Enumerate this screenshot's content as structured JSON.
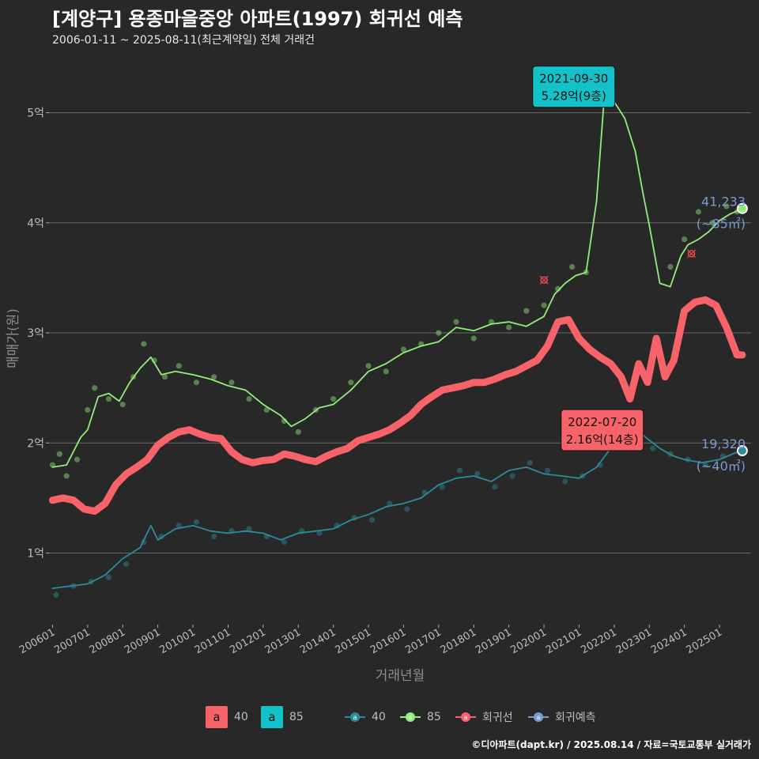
{
  "header": {
    "title": "[계양구] 용종마을중앙 아파트(1997) 회귀선 예측",
    "subtitle": "2006-01-11 ~ 2025-08-11(최근계약일) 전체 거래건"
  },
  "caption": "©디아파트(dapt.kr) / 2025.08.14 / 자료=국토교통부 실거래가",
  "legend": {
    "label_items": [
      {
        "key": "a",
        "label": "40",
        "color": "#f8636a"
      },
      {
        "key": "a",
        "label": "85",
        "color": "#13c2c9"
      }
    ],
    "line_items": [
      {
        "label": "40",
        "color": "#2c8c99"
      },
      {
        "label": "85",
        "color": "#90ee7a"
      },
      {
        "label": "회귀선",
        "color": "#f8636a"
      },
      {
        "label": "회귀예측",
        "color": "#7b9ad2"
      }
    ]
  },
  "chart_data": {
    "type": "line",
    "xlabel": "거래년월",
    "ylabel": "매매가(원)",
    "x_ticks": [
      "200601",
      "200701",
      "200801",
      "200901",
      "201001",
      "201101",
      "201201",
      "201301",
      "201401",
      "201501",
      "201601",
      "201701",
      "201801",
      "201901",
      "202001",
      "202101",
      "202201",
      "202301",
      "202401",
      "202501"
    ],
    "y_ticks": [
      {
        "value": 1,
        "label": "1억"
      },
      {
        "value": 2,
        "label": "2억"
      },
      {
        "value": 3,
        "label": "3억"
      },
      {
        "value": 4,
        "label": "4억"
      },
      {
        "value": 5,
        "label": "5억"
      }
    ],
    "x_range": [
      2005.9,
      2025.9
    ],
    "y_range": [
      0.35,
      5.55
    ],
    "grid": true,
    "series": [
      {
        "name": "85",
        "color": "#90ee7a",
        "points": [
          [
            2006.0,
            1.78
          ],
          [
            2006.4,
            1.8
          ],
          [
            2006.8,
            2.05
          ],
          [
            2007.0,
            2.12
          ],
          [
            2007.3,
            2.42
          ],
          [
            2007.6,
            2.45
          ],
          [
            2007.9,
            2.38
          ],
          [
            2008.2,
            2.55
          ],
          [
            2008.5,
            2.68
          ],
          [
            2008.8,
            2.78
          ],
          [
            2009.1,
            2.62
          ],
          [
            2009.5,
            2.65
          ],
          [
            2010.0,
            2.62
          ],
          [
            2010.5,
            2.58
          ],
          [
            2011.0,
            2.52
          ],
          [
            2011.5,
            2.48
          ],
          [
            2012.0,
            2.35
          ],
          [
            2012.5,
            2.25
          ],
          [
            2012.8,
            2.15
          ],
          [
            2013.2,
            2.22
          ],
          [
            2013.6,
            2.32
          ],
          [
            2014.0,
            2.35
          ],
          [
            2014.5,
            2.48
          ],
          [
            2015.0,
            2.65
          ],
          [
            2015.5,
            2.72
          ],
          [
            2016.0,
            2.82
          ],
          [
            2016.5,
            2.88
          ],
          [
            2017.0,
            2.92
          ],
          [
            2017.5,
            3.05
          ],
          [
            2018.0,
            3.02
          ],
          [
            2018.5,
            3.08
          ],
          [
            2019.0,
            3.1
          ],
          [
            2019.5,
            3.06
          ],
          [
            2020.0,
            3.15
          ],
          [
            2020.3,
            3.35
          ],
          [
            2020.6,
            3.45
          ],
          [
            2020.9,
            3.52
          ],
          [
            2021.2,
            3.55
          ],
          [
            2021.5,
            4.2
          ],
          [
            2021.75,
            5.28
          ],
          [
            2022.0,
            5.1
          ],
          [
            2022.3,
            4.95
          ],
          [
            2022.6,
            4.65
          ],
          [
            2022.8,
            4.3
          ],
          [
            2023.0,
            3.98
          ],
          [
            2023.3,
            3.45
          ],
          [
            2023.6,
            3.42
          ],
          [
            2023.9,
            3.7
          ],
          [
            2024.1,
            3.8
          ],
          [
            2024.4,
            3.85
          ],
          [
            2024.7,
            3.92
          ],
          [
            2025.0,
            4.02
          ],
          [
            2025.3,
            4.08
          ],
          [
            2025.6,
            4.12
          ]
        ],
        "scatter": [
          [
            2006.0,
            1.8
          ],
          [
            2006.2,
            1.9
          ],
          [
            2006.4,
            1.7
          ],
          [
            2006.7,
            1.85
          ],
          [
            2007.0,
            2.3
          ],
          [
            2007.2,
            2.5
          ],
          [
            2007.6,
            2.4
          ],
          [
            2008.0,
            2.35
          ],
          [
            2008.3,
            2.6
          ],
          [
            2008.6,
            2.9
          ],
          [
            2008.9,
            2.75
          ],
          [
            2009.2,
            2.6
          ],
          [
            2009.6,
            2.7
          ],
          [
            2010.1,
            2.55
          ],
          [
            2010.6,
            2.6
          ],
          [
            2011.1,
            2.55
          ],
          [
            2011.6,
            2.4
          ],
          [
            2012.1,
            2.3
          ],
          [
            2012.6,
            2.2
          ],
          [
            2013.0,
            2.1
          ],
          [
            2013.5,
            2.3
          ],
          [
            2014.0,
            2.4
          ],
          [
            2014.5,
            2.55
          ],
          [
            2015.0,
            2.7
          ],
          [
            2015.5,
            2.65
          ],
          [
            2016.0,
            2.85
          ],
          [
            2016.5,
            2.9
          ],
          [
            2017.0,
            3.0
          ],
          [
            2017.5,
            3.1
          ],
          [
            2018.0,
            2.95
          ],
          [
            2018.5,
            3.1
          ],
          [
            2019.0,
            3.05
          ],
          [
            2019.5,
            3.2
          ],
          [
            2020.0,
            3.25
          ],
          [
            2020.4,
            3.4
          ],
          [
            2020.8,
            3.6
          ],
          [
            2021.2,
            3.55
          ],
          [
            2023.6,
            3.6
          ],
          [
            2024.0,
            3.85
          ],
          [
            2024.4,
            4.1
          ],
          [
            2024.8,
            4.0
          ],
          [
            2025.2,
            4.15
          ],
          [
            2025.5,
            4.1
          ]
        ]
      },
      {
        "name": "40",
        "color": "#2c8c99",
        "points": [
          [
            2006.0,
            0.68
          ],
          [
            2006.5,
            0.7
          ],
          [
            2007.0,
            0.72
          ],
          [
            2007.5,
            0.8
          ],
          [
            2008.0,
            0.95
          ],
          [
            2008.5,
            1.05
          ],
          [
            2008.8,
            1.25
          ],
          [
            2009.0,
            1.12
          ],
          [
            2009.5,
            1.22
          ],
          [
            2010.0,
            1.25
          ],
          [
            2010.5,
            1.2
          ],
          [
            2011.0,
            1.18
          ],
          [
            2011.5,
            1.2
          ],
          [
            2012.0,
            1.18
          ],
          [
            2012.5,
            1.12
          ],
          [
            2013.0,
            1.18
          ],
          [
            2013.5,
            1.2
          ],
          [
            2014.0,
            1.22
          ],
          [
            2014.5,
            1.3
          ],
          [
            2015.0,
            1.35
          ],
          [
            2015.5,
            1.42
          ],
          [
            2016.0,
            1.45
          ],
          [
            2016.5,
            1.5
          ],
          [
            2017.0,
            1.62
          ],
          [
            2017.5,
            1.68
          ],
          [
            2018.0,
            1.7
          ],
          [
            2018.5,
            1.65
          ],
          [
            2019.0,
            1.75
          ],
          [
            2019.5,
            1.78
          ],
          [
            2020.0,
            1.72
          ],
          [
            2020.5,
            1.7
          ],
          [
            2021.0,
            1.68
          ],
          [
            2021.5,
            1.78
          ],
          [
            2021.9,
            1.95
          ],
          [
            2022.25,
            2.15
          ],
          [
            2022.56,
            2.16
          ],
          [
            2022.9,
            2.05
          ],
          [
            2023.3,
            1.95
          ],
          [
            2023.7,
            1.88
          ],
          [
            2024.0,
            1.85
          ],
          [
            2024.5,
            1.82
          ],
          [
            2025.0,
            1.85
          ],
          [
            2025.6,
            1.93
          ]
        ],
        "scatter": [
          [
            2006.1,
            0.62
          ],
          [
            2006.6,
            0.7
          ],
          [
            2007.1,
            0.74
          ],
          [
            2007.6,
            0.78
          ],
          [
            2008.1,
            0.9
          ],
          [
            2008.6,
            1.1
          ],
          [
            2009.1,
            1.15
          ],
          [
            2009.6,
            1.25
          ],
          [
            2010.1,
            1.28
          ],
          [
            2010.6,
            1.15
          ],
          [
            2011.1,
            1.2
          ],
          [
            2011.6,
            1.22
          ],
          [
            2012.1,
            1.15
          ],
          [
            2012.6,
            1.1
          ],
          [
            2013.1,
            1.2
          ],
          [
            2013.6,
            1.18
          ],
          [
            2014.1,
            1.25
          ],
          [
            2014.6,
            1.32
          ],
          [
            2015.1,
            1.3
          ],
          [
            2015.6,
            1.45
          ],
          [
            2016.1,
            1.4
          ],
          [
            2016.6,
            1.55
          ],
          [
            2017.1,
            1.6
          ],
          [
            2017.6,
            1.75
          ],
          [
            2018.1,
            1.72
          ],
          [
            2018.6,
            1.6
          ],
          [
            2019.1,
            1.7
          ],
          [
            2019.6,
            1.82
          ],
          [
            2020.1,
            1.75
          ],
          [
            2020.6,
            1.65
          ],
          [
            2021.1,
            1.7
          ],
          [
            2021.6,
            1.8
          ],
          [
            2022.6,
            2.1
          ],
          [
            2023.1,
            1.95
          ],
          [
            2023.6,
            1.9
          ],
          [
            2024.1,
            1.85
          ],
          [
            2024.6,
            1.8
          ],
          [
            2025.1,
            1.88
          ]
        ]
      },
      {
        "name": "회귀선",
        "color": "#f8636a",
        "points": [
          [
            2006.0,
            1.48
          ],
          [
            2006.3,
            1.5
          ],
          [
            2006.6,
            1.48
          ],
          [
            2006.9,
            1.4
          ],
          [
            2007.2,
            1.38
          ],
          [
            2007.5,
            1.45
          ],
          [
            2007.8,
            1.62
          ],
          [
            2008.1,
            1.72
          ],
          [
            2008.4,
            1.78
          ],
          [
            2008.7,
            1.85
          ],
          [
            2009.0,
            1.98
          ],
          [
            2009.3,
            2.05
          ],
          [
            2009.6,
            2.1
          ],
          [
            2009.9,
            2.12
          ],
          [
            2010.2,
            2.08
          ],
          [
            2010.5,
            2.05
          ],
          [
            2010.8,
            2.04
          ],
          [
            2011.1,
            1.92
          ],
          [
            2011.4,
            1.85
          ],
          [
            2011.7,
            1.82
          ],
          [
            2012.0,
            1.84
          ],
          [
            2012.3,
            1.85
          ],
          [
            2012.6,
            1.9
          ],
          [
            2012.9,
            1.88
          ],
          [
            2013.2,
            1.85
          ],
          [
            2013.5,
            1.83
          ],
          [
            2013.8,
            1.88
          ],
          [
            2014.1,
            1.92
          ],
          [
            2014.4,
            1.95
          ],
          [
            2014.7,
            2.02
          ],
          [
            2015.0,
            2.05
          ],
          [
            2015.3,
            2.08
          ],
          [
            2015.6,
            2.12
          ],
          [
            2015.9,
            2.18
          ],
          [
            2016.2,
            2.25
          ],
          [
            2016.5,
            2.35
          ],
          [
            2016.8,
            2.42
          ],
          [
            2017.1,
            2.48
          ],
          [
            2017.4,
            2.5
          ],
          [
            2017.7,
            2.52
          ],
          [
            2018.0,
            2.55
          ],
          [
            2018.3,
            2.55
          ],
          [
            2018.6,
            2.58
          ],
          [
            2018.9,
            2.62
          ],
          [
            2019.2,
            2.65
          ],
          [
            2019.5,
            2.7
          ],
          [
            2019.8,
            2.75
          ],
          [
            2020.1,
            2.88
          ],
          [
            2020.4,
            3.1
          ],
          [
            2020.7,
            3.12
          ],
          [
            2021.0,
            2.95
          ],
          [
            2021.3,
            2.85
          ],
          [
            2021.6,
            2.78
          ],
          [
            2021.9,
            2.72
          ],
          [
            2022.2,
            2.6
          ],
          [
            2022.45,
            2.4
          ],
          [
            2022.7,
            2.72
          ],
          [
            2022.95,
            2.55
          ],
          [
            2023.2,
            2.95
          ],
          [
            2023.45,
            2.6
          ],
          [
            2023.7,
            2.75
          ],
          [
            2024.0,
            3.2
          ],
          [
            2024.3,
            3.28
          ],
          [
            2024.6,
            3.3
          ],
          [
            2024.9,
            3.25
          ],
          [
            2025.2,
            3.05
          ],
          [
            2025.5,
            2.8
          ],
          [
            2025.65,
            2.8
          ]
        ]
      }
    ],
    "annotations": [
      {
        "series": "85",
        "x": 2021.75,
        "y": 5.28,
        "date": "2021-09-30",
        "text": "5.28억(9층)",
        "color": "#13c2c9"
      },
      {
        "series": "40",
        "x": 2022.56,
        "y": 2.16,
        "date": "2022-07-20",
        "text": "2.16억(14층)",
        "color": "#f8636a"
      }
    ],
    "end_labels": [
      {
        "series": "85",
        "x": 2025.65,
        "y": 4.13,
        "count": "41,233",
        "area": "(~85㎡)"
      },
      {
        "series": "40",
        "x": 2025.65,
        "y": 1.93,
        "count": "19,320",
        "area": "(~40㎡)"
      }
    ],
    "x_markers": [
      [
        2021.75,
        5.28
      ],
      [
        2020.0,
        3.48
      ],
      [
        2024.2,
        3.72
      ],
      [
        2022.56,
        2.16
      ]
    ]
  }
}
